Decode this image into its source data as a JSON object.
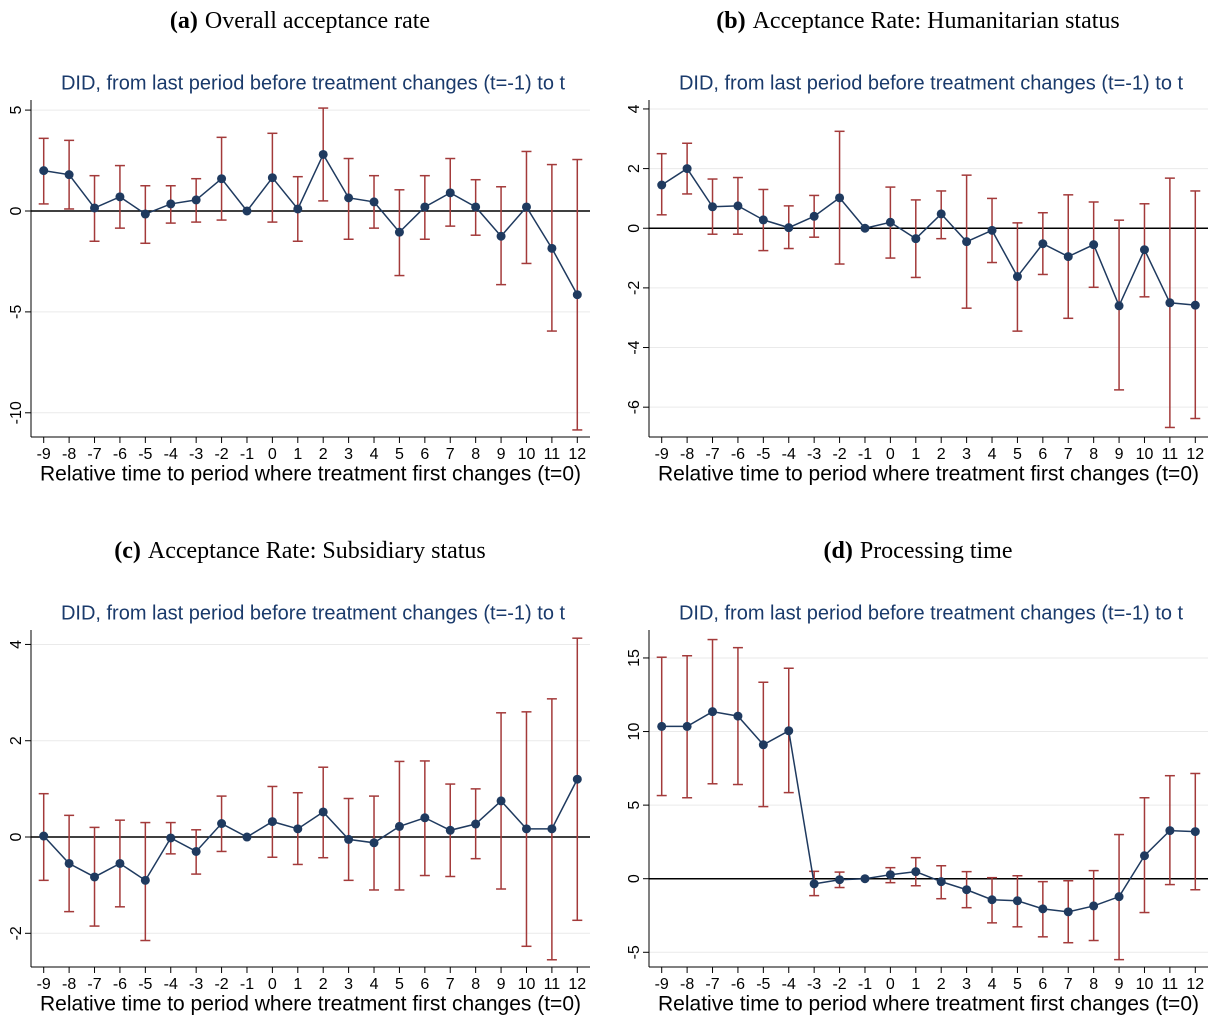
{
  "chart_data": [
    {
      "type": "line",
      "label": "(a)",
      "title": "Overall acceptance rate",
      "subtitle": "DID, from last period before treatment changes (t=-1) to t",
      "x_label": "Relative time to period where treatment first changes (t=0)",
      "x": [
        -9,
        -8,
        -7,
        -6,
        -5,
        -4,
        -3,
        -2,
        -1,
        0,
        1,
        2,
        3,
        4,
        5,
        6,
        7,
        8,
        9,
        10,
        11,
        12
      ],
      "xlim": [
        -9.5,
        12.5
      ],
      "xticks": [
        -9,
        -8,
        -7,
        -6,
        -5,
        -4,
        -3,
        -2,
        -1,
        0,
        1,
        2,
        3,
        4,
        5,
        6,
        7,
        8,
        9,
        10,
        11,
        12
      ],
      "ylim": [
        -11.2,
        5.5
      ],
      "yticks": [
        -10,
        -5,
        0,
        5
      ],
      "grid": true,
      "hline": 0,
      "color": "#1f3a5f",
      "ci_color": "#a33a3a",
      "values": [
        2.0,
        1.8,
        0.15,
        0.7,
        -0.15,
        0.35,
        0.55,
        1.6,
        0,
        1.65,
        0.1,
        2.8,
        0.65,
        0.45,
        -1.05,
        0.2,
        0.9,
        0.2,
        -1.25,
        0.2,
        -1.85,
        -4.15
      ],
      "ci_low": [
        0.35,
        0.1,
        -1.5,
        -0.85,
        -1.6,
        -0.6,
        -0.55,
        -0.45,
        null,
        -0.55,
        -1.5,
        0.5,
        -1.4,
        -0.85,
        -3.2,
        -1.4,
        -0.75,
        -1.2,
        -3.65,
        -2.6,
        -5.95,
        -10.85
      ],
      "ci_high": [
        3.6,
        3.5,
        1.75,
        2.25,
        1.25,
        1.25,
        1.6,
        3.65,
        null,
        3.85,
        1.7,
        5.1,
        2.6,
        1.75,
        1.05,
        1.75,
        2.6,
        1.55,
        1.2,
        2.95,
        2.3,
        2.55
      ]
    },
    {
      "type": "line",
      "label": "(b)",
      "title": "Acceptance Rate: Humanitarian status",
      "subtitle": "DID, from last period before treatment changes (t=-1) to t",
      "x_label": "Relative time to period where treatment first changes (t=0)",
      "x": [
        -9,
        -8,
        -7,
        -6,
        -5,
        -4,
        -3,
        -2,
        -1,
        0,
        1,
        2,
        3,
        4,
        5,
        6,
        7,
        8,
        9,
        10,
        11,
        12
      ],
      "xlim": [
        -9.5,
        12.5
      ],
      "xticks": [
        -9,
        -8,
        -7,
        -6,
        -5,
        -4,
        -3,
        -2,
        -1,
        0,
        1,
        2,
        3,
        4,
        5,
        6,
        7,
        8,
        9,
        10,
        11,
        12
      ],
      "ylim": [
        -7,
        4.3
      ],
      "yticks": [
        -6,
        -4,
        -2,
        0,
        2,
        4
      ],
      "grid": true,
      "hline": 0,
      "color": "#1f3a5f",
      "ci_color": "#a33a3a",
      "values": [
        1.45,
        2.0,
        0.72,
        0.75,
        0.28,
        0.02,
        0.4,
        1.02,
        0,
        0.2,
        -0.35,
        0.48,
        -0.45,
        -0.07,
        -1.62,
        -0.52,
        -0.95,
        -0.55,
        -2.6,
        -0.72,
        -2.5,
        -2.58
      ],
      "ci_low": [
        0.45,
        1.15,
        -0.2,
        -0.2,
        -0.75,
        -0.68,
        -0.3,
        -1.2,
        null,
        -1.0,
        -1.65,
        -0.35,
        -2.68,
        -1.15,
        -3.45,
        -1.55,
        -3.02,
        -1.98,
        -5.42,
        -2.3,
        -6.68,
        -6.38
      ],
      "ci_high": [
        2.5,
        2.85,
        1.65,
        1.7,
        1.3,
        0.75,
        1.1,
        3.25,
        null,
        1.38,
        0.95,
        1.25,
        1.78,
        1.0,
        0.18,
        0.52,
        1.12,
        0.88,
        0.27,
        0.82,
        1.68,
        1.25
      ]
    },
    {
      "type": "line",
      "label": "(c)",
      "title": "Acceptance Rate: Subsidiary status",
      "subtitle": "DID, from last period before treatment changes (t=-1) to t",
      "x_label": "Relative time to period where treatment first changes (t=0)",
      "x": [
        -9,
        -8,
        -7,
        -6,
        -5,
        -4,
        -3,
        -2,
        -1,
        0,
        1,
        2,
        3,
        4,
        5,
        6,
        7,
        8,
        9,
        10,
        11,
        12
      ],
      "xlim": [
        -9.5,
        12.5
      ],
      "xticks": [
        -9,
        -8,
        -7,
        -6,
        -5,
        -4,
        -3,
        -2,
        -1,
        0,
        1,
        2,
        3,
        4,
        5,
        6,
        7,
        8,
        9,
        10,
        11,
        12
      ],
      "ylim": [
        -2.7,
        4.3
      ],
      "yticks": [
        -2,
        0,
        2,
        4
      ],
      "grid": true,
      "hline": 0,
      "color": "#1f3a5f",
      "ci_color": "#a33a3a",
      "values": [
        0.02,
        -0.55,
        -0.83,
        -0.55,
        -0.9,
        -0.02,
        -0.3,
        0.28,
        0,
        0.32,
        0.17,
        0.52,
        -0.05,
        -0.12,
        0.22,
        0.4,
        0.14,
        0.27,
        0.75,
        0.17,
        0.17,
        1.2
      ],
      "ci_low": [
        -0.9,
        -1.55,
        -1.85,
        -1.45,
        -2.15,
        -0.35,
        -0.77,
        -0.3,
        null,
        -0.42,
        -0.57,
        -0.43,
        -0.9,
        -1.1,
        -1.1,
        -0.8,
        -0.82,
        -0.45,
        -1.08,
        -2.27,
        -2.55,
        -1.73
      ],
      "ci_high": [
        0.9,
        0.45,
        0.2,
        0.35,
        0.3,
        0.3,
        0.15,
        0.85,
        null,
        1.05,
        0.92,
        1.45,
        0.8,
        0.85,
        1.57,
        1.58,
        1.1,
        1.0,
        2.58,
        2.6,
        2.87,
        4.13
      ]
    },
    {
      "type": "line",
      "label": "(d)",
      "title": "Processing time",
      "subtitle": "DID, from last period before treatment changes (t=-1) to t",
      "x_label": "Relative time to period where treatment first changes (t=0)",
      "x": [
        -9,
        -8,
        -7,
        -6,
        -5,
        -4,
        -3,
        -2,
        -1,
        0,
        1,
        2,
        3,
        4,
        5,
        6,
        7,
        8,
        9,
        10,
        11,
        12
      ],
      "xlim": [
        -9.5,
        12.5
      ],
      "xticks": [
        -9,
        -8,
        -7,
        -6,
        -5,
        -4,
        -3,
        -2,
        -1,
        0,
        1,
        2,
        3,
        4,
        5,
        6,
        7,
        8,
        9,
        10,
        11,
        12
      ],
      "ylim": [
        -6,
        16.9
      ],
      "yticks": [
        -5,
        0,
        5,
        10,
        15
      ],
      "grid": true,
      "hline": 0,
      "color": "#1f3a5f",
      "ci_color": "#a33a3a",
      "values": [
        10.35,
        10.35,
        11.35,
        11.05,
        9.1,
        10.05,
        -0.35,
        -0.07,
        0,
        0.27,
        0.48,
        -0.2,
        -0.75,
        -1.43,
        -1.5,
        -2.05,
        -2.25,
        -1.85,
        -1.22,
        1.56,
        3.27,
        3.2
      ],
      "ci_low": [
        5.65,
        5.5,
        6.45,
        6.4,
        4.9,
        5.85,
        -1.15,
        -0.6,
        null,
        -0.27,
        -0.48,
        -1.36,
        -1.97,
        -3.0,
        -3.27,
        -3.95,
        -4.35,
        -4.2,
        -5.5,
        -2.3,
        -0.4,
        -0.75
      ],
      "ci_high": [
        15.05,
        15.15,
        16.25,
        15.7,
        13.35,
        14.3,
        0.5,
        0.45,
        null,
        0.75,
        1.43,
        0.88,
        0.48,
        0.07,
        0.2,
        -0.2,
        -0.14,
        0.55,
        3.0,
        5.5,
        7.0,
        7.15
      ]
    }
  ]
}
